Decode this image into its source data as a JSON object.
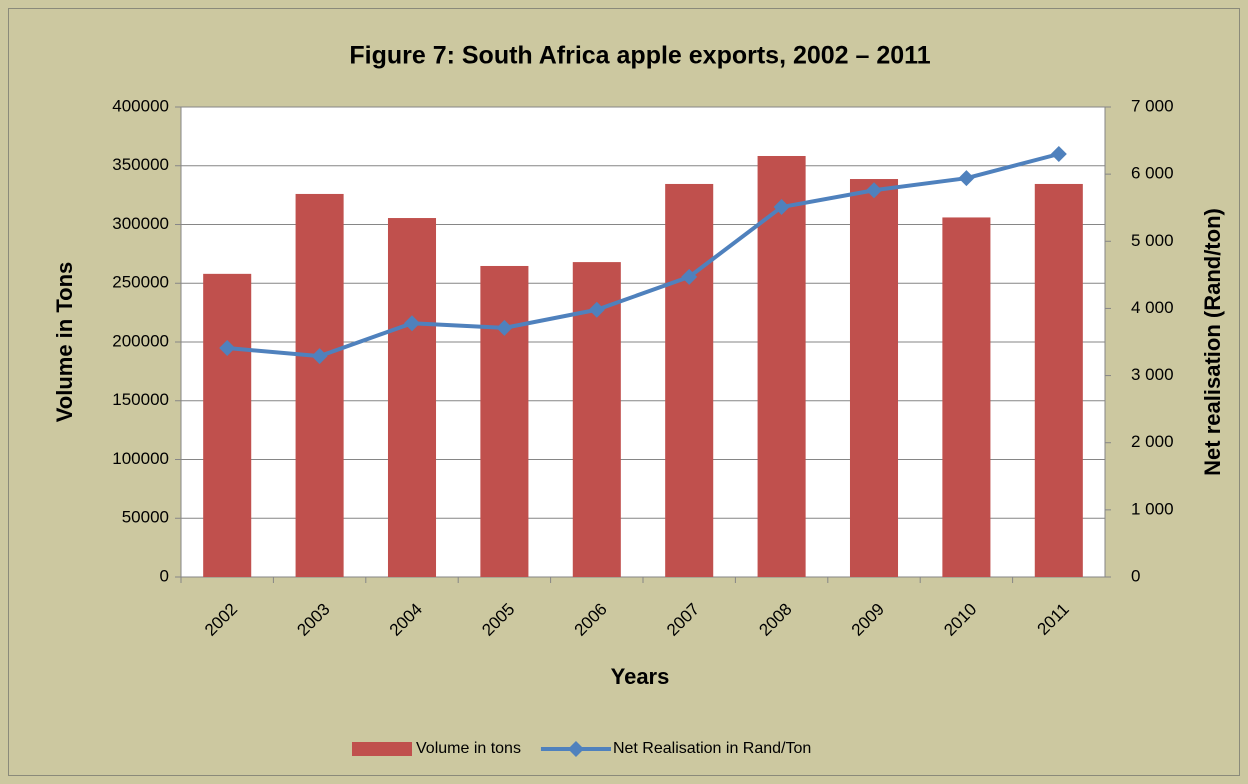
{
  "chart_data": {
    "type": "bar-line",
    "title": "Figure 7: South Africa apple exports, 2002 – 2011",
    "x_label": "Years",
    "y_label": "Volume in Tons",
    "y2_label": "Net realisation (Rand/ton)",
    "categories": [
      "2002",
      "2003",
      "2004",
      "2005",
      "2006",
      "2007",
      "2008",
      "2009",
      "2010",
      "2011"
    ],
    "series": [
      {
        "name": "Volume in tons",
        "type": "bar",
        "color": "#c0504d",
        "values": [
          258000,
          326000,
          305500,
          264700,
          268000,
          334500,
          358300,
          338700,
          306000,
          334500
        ]
      },
      {
        "name": "Net Realisation in Rand/Ton",
        "type": "line",
        "axis": "y2",
        "color": "#4f81bd",
        "values": [
          3410,
          3290,
          3780,
          3710,
          3980,
          4470,
          5510,
          5760,
          5940,
          6300
        ]
      }
    ],
    "ylim": [
      0,
      400000
    ],
    "yticks": [
      0,
      50000,
      100000,
      150000,
      200000,
      250000,
      300000,
      350000,
      400000
    ],
    "y2lim": [
      0,
      7000
    ],
    "y2ticks": [
      0,
      {
        "value": 1000,
        "label": "1 000"
      },
      {
        "value": 2000,
        "label": "2 000"
      },
      {
        "value": 3000,
        "label": "3 000"
      },
      {
        "value": 4000,
        "label": "4 000"
      },
      {
        "value": 5000,
        "label": "5 000"
      },
      {
        "value": 6000,
        "label": "6 000"
      },
      {
        "value": 7000,
        "label": "7 000"
      }
    ],
    "grid": true,
    "legend": "bottom"
  }
}
